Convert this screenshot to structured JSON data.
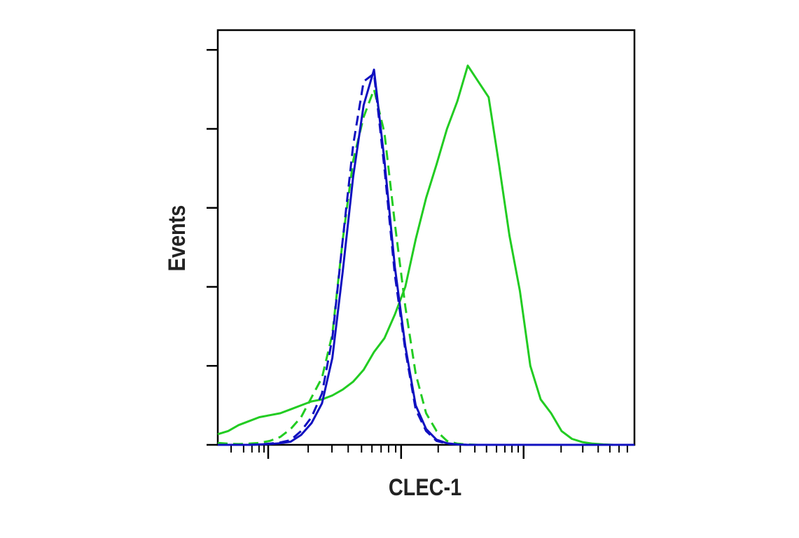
{
  "chart_data": {
    "type": "line",
    "xlabel": "CLEC-1",
    "ylabel": "Events",
    "x": [
      0,
      2.5,
      5,
      7.5,
      10,
      12.5,
      15,
      17.5,
      20,
      22.5,
      25,
      27.5,
      30,
      32.5,
      35,
      37.5,
      40,
      42.5,
      45,
      47.5,
      50,
      52.5,
      55,
      57.5,
      60,
      62.5,
      65,
      67.5,
      70,
      72.5,
      75,
      77.5,
      80,
      82.5,
      85,
      87.5,
      90,
      92.5,
      95,
      97.5,
      100
    ],
    "series": [
      {
        "color": "#22cc22",
        "dashed": false,
        "values": [
          2.7,
          3.5,
          5,
          6,
          7,
          7.5,
          8,
          9,
          10,
          11,
          11.5,
          12.5,
          14,
          16,
          19,
          23.5,
          27,
          33,
          40,
          52,
          62.5,
          71,
          80,
          87,
          96,
          92,
          88,
          71,
          53,
          39,
          20,
          11.5,
          8,
          3.5,
          1.5,
          0.7,
          0.3,
          0.1,
          0,
          0,
          0
        ]
      },
      {
        "color": "#22cc22",
        "dashed": true,
        "values": [
          0.5,
          0.3,
          0.2,
          0.3,
          0.5,
          1,
          2,
          4,
          7,
          12,
          17,
          28,
          52,
          72,
          83,
          90,
          79,
          56,
          35,
          18,
          8,
          3.5,
          1,
          0.3,
          0.1,
          0,
          0,
          0,
          0,
          0,
          0,
          0,
          0,
          0,
          0,
          0,
          0,
          0,
          0,
          0,
          0
        ]
      },
      {
        "color": "#1010c0",
        "dashed": false,
        "values": [
          0,
          0,
          0,
          0,
          0.1,
          0.2,
          0.4,
          0.8,
          2.5,
          5.5,
          10.5,
          22,
          44,
          68,
          86,
          95,
          72,
          45,
          25,
          10,
          4,
          1.3,
          0.4,
          0.1,
          0,
          0,
          0,
          0,
          0,
          0,
          0,
          0,
          0,
          0,
          0,
          0,
          0,
          0,
          0,
          0,
          0
        ]
      },
      {
        "color": "#1010c0",
        "dashed": true,
        "values": [
          0,
          0,
          0,
          0,
          0.1,
          0.3,
          0.6,
          1.2,
          3.5,
          7,
          13,
          27,
          52,
          76,
          92,
          94,
          70,
          43,
          24,
          9,
          3.5,
          1,
          0.3,
          0.1,
          0,
          0,
          0,
          0,
          0,
          0,
          0,
          0,
          0,
          0,
          0,
          0,
          0,
          0,
          0,
          0,
          0
        ]
      }
    ],
    "xlim": [
      0,
      100
    ],
    "ylim": [
      0,
      105
    ],
    "xticks": [
      12.1,
      44.0,
      73.4
    ],
    "xminorticks": [
      3.2,
      6.2,
      8.2,
      9.9,
      11.1,
      21.7,
      27.4,
      31.3,
      34.5,
      37.0,
      39.2,
      41.0,
      42.7,
      52.9,
      58.2,
      61.7,
      64.5,
      66.9,
      68.9,
      70.6,
      72.1,
      82.4,
      87.6,
      91.3,
      94.1,
      96.3,
      98.3
    ],
    "yticks": [
      0,
      20,
      40,
      60,
      80,
      100
    ]
  }
}
